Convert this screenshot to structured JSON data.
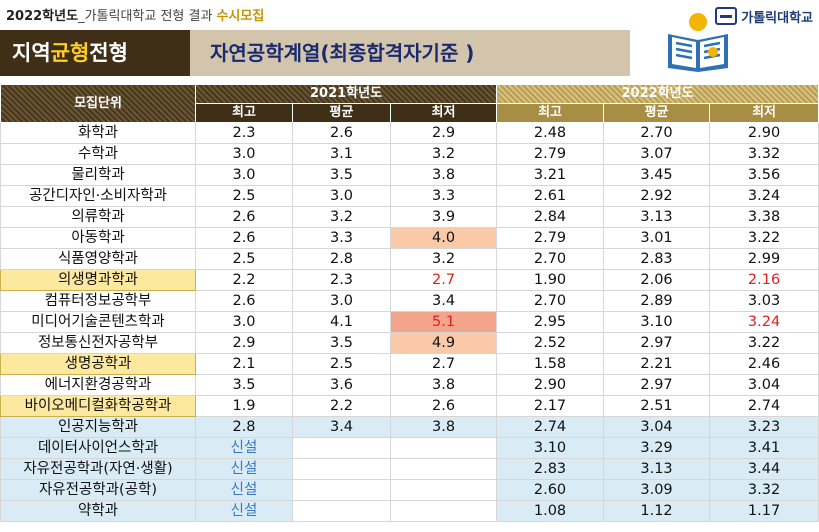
{
  "header": {
    "year_prefix": "2022학년도",
    "subtitle": "_가톨릭대학교 전형 결과",
    "tag": "수시모집",
    "logo_text": "가톨릭대학교"
  },
  "banner": {
    "track_a": "지역",
    "track_b": "균형",
    "track_c": "전형",
    "title": "자연공학계열(최종합격자기준 )"
  },
  "table": {
    "unit_header": "모집단위",
    "year1": "2021학년도",
    "year2": "2022학년도",
    "sub_headers": [
      "최고",
      "평균",
      "최저",
      "최고",
      "평균",
      "최저"
    ],
    "rows": [
      {
        "name": "화학과",
        "v": [
          "2.3",
          "2.6",
          "2.9",
          "2.48",
          "2.70",
          "2.90"
        ]
      },
      {
        "name": "수학과",
        "v": [
          "3.0",
          "3.1",
          "3.2",
          "2.79",
          "3.07",
          "3.32"
        ]
      },
      {
        "name": "물리학과",
        "v": [
          "3.0",
          "3.5",
          "3.8",
          "3.21",
          "3.45",
          "3.56"
        ]
      },
      {
        "name": "공간디자인·소비자학과",
        "v": [
          "2.5",
          "3.0",
          "3.3",
          "2.61",
          "2.92",
          "3.24"
        ]
      },
      {
        "name": "의류학과",
        "v": [
          "2.6",
          "3.2",
          "3.9",
          "2.84",
          "3.13",
          "3.38"
        ]
      },
      {
        "name": "아동학과",
        "v": [
          "2.6",
          "3.3",
          "4.0",
          "2.79",
          "3.01",
          "3.22"
        ]
      },
      {
        "name": "식품영양학과",
        "v": [
          "2.5",
          "2.8",
          "3.2",
          "2.70",
          "2.83",
          "2.99"
        ]
      },
      {
        "name": "의생명과학과",
        "v": [
          "2.2",
          "2.3",
          "2.7",
          "1.90",
          "2.06",
          "2.16"
        ]
      },
      {
        "name": "컴퓨터정보공학부",
        "v": [
          "2.6",
          "3.0",
          "3.4",
          "2.70",
          "2.89",
          "3.03"
        ]
      },
      {
        "name": "미디어기술콘텐츠학과",
        "v": [
          "3.0",
          "4.1",
          "5.1",
          "2.95",
          "3.10",
          "3.24"
        ]
      },
      {
        "name": "정보통신전자공학부",
        "v": [
          "2.9",
          "3.5",
          "4.9",
          "2.52",
          "2.97",
          "3.22"
        ]
      },
      {
        "name": "생명공학과",
        "v": [
          "2.1",
          "2.5",
          "2.7",
          "1.58",
          "2.21",
          "2.46"
        ]
      },
      {
        "name": "에너지환경공학과",
        "v": [
          "3.5",
          "3.6",
          "3.8",
          "2.90",
          "2.97",
          "3.04"
        ]
      },
      {
        "name": "바이오메디컬화학공학과",
        "v": [
          "1.9",
          "2.2",
          "2.6",
          "2.17",
          "2.51",
          "2.74"
        ]
      },
      {
        "name": "인공지능학과",
        "v": [
          "2.8",
          "3.4",
          "3.8",
          "2.74",
          "3.04",
          "3.23"
        ]
      },
      {
        "name": "데이터사이언스학과",
        "v": [
          "신설",
          "",
          "",
          "3.10",
          "3.29",
          "3.41"
        ]
      },
      {
        "name": "자유전공학과(자연·생활)",
        "v": [
          "신설",
          "",
          "",
          "2.83",
          "3.13",
          "3.44"
        ]
      },
      {
        "name": "자유전공학과(공학)",
        "v": [
          "신설",
          "",
          "",
          "2.60",
          "3.09",
          "3.32"
        ]
      },
      {
        "name": "약학과",
        "v": [
          "신설",
          "",
          "",
          "1.08",
          "1.12",
          "1.17"
        ]
      }
    ]
  },
  "colors": {
    "banner_dark": "#3f2f17",
    "banner_light": "#d3c5ab",
    "accent_yellow": "#ffcc2a",
    "title_blue": "#1b2a70",
    "highlight_row": "#fde8a0",
    "blue_row": "#d9ecf6",
    "peach_cell": "#f9c9a8",
    "salmon_cell": "#f2a58a",
    "red_text": "#e02020",
    "new_text": "#3a78c2"
  },
  "icons": {
    "logo": "university-seal-icon",
    "illustration": "person-reading-book-icon"
  }
}
